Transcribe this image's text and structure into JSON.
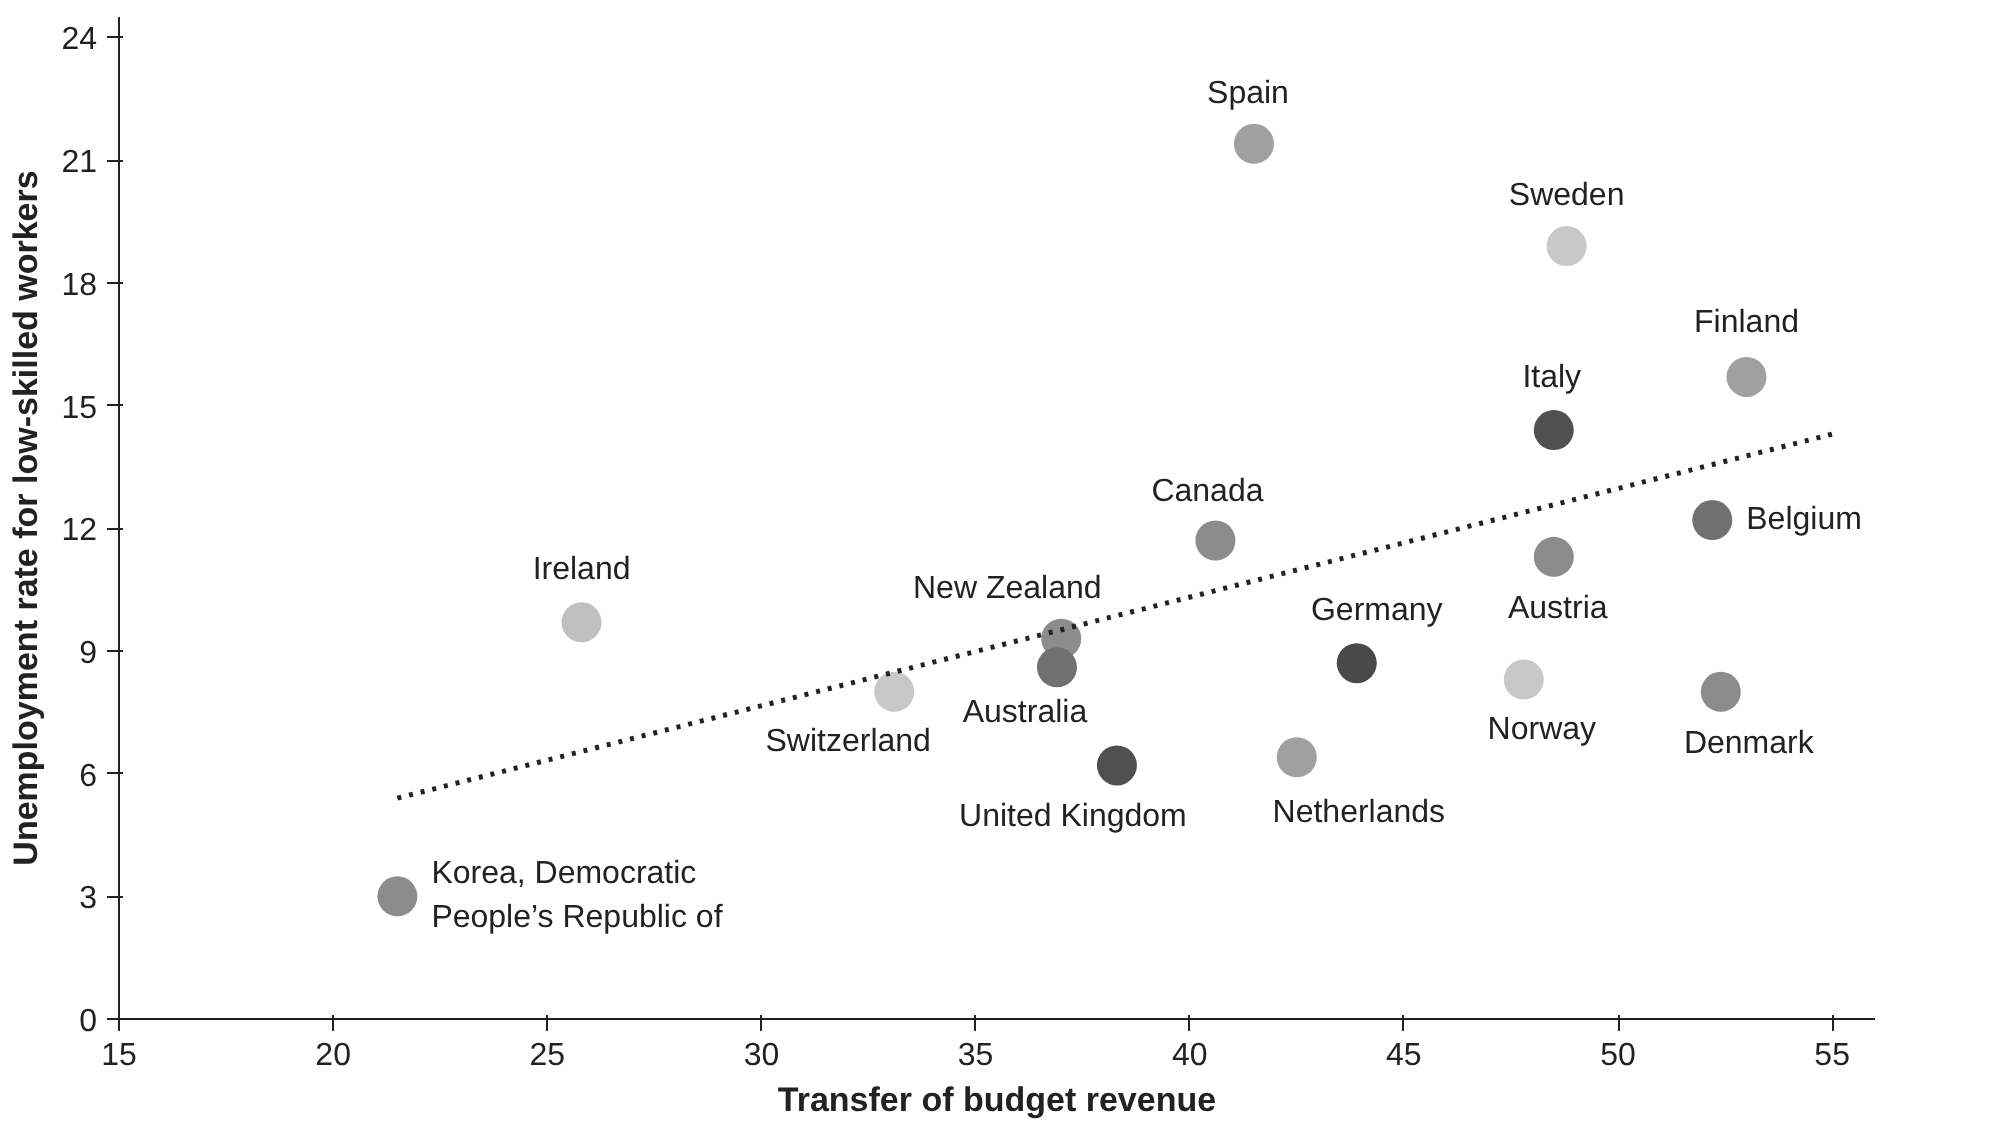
{
  "chart_data": {
    "type": "scatter",
    "xlabel": "Transfer of budget revenue",
    "ylabel": "Unemployment rate for low-skilled workers",
    "xlim": [
      15,
      56
    ],
    "ylim": [
      0,
      24.5
    ],
    "xticks": [
      15,
      20,
      25,
      30,
      35,
      40,
      45,
      50,
      55
    ],
    "yticks": [
      0,
      3,
      6,
      9,
      12,
      15,
      18,
      21,
      24
    ],
    "grid": false,
    "series": [
      {
        "marker": "circle",
        "x": [
          21.5,
          25.8,
          33.1,
          37.0,
          36.9,
          38.3,
          40.6,
          41.5,
          42.5,
          43.9,
          47.8,
          48.8,
          48.5,
          48.5,
          52.2,
          52.4,
          53.0
        ],
        "values": [
          3.0,
          9.7,
          8.0,
          9.3,
          8.6,
          6.2,
          11.7,
          21.4,
          6.4,
          8.7,
          8.3,
          18.9,
          14.4,
          11.3,
          12.2,
          8.0,
          15.7
        ],
        "colors": [
          "#8c8c8c",
          "#c0c0c0",
          "#c8c8c8",
          "#8c8c8c",
          "#707070",
          "#505050",
          "#8c8c8c",
          "#a0a0a0",
          "#a0a0a0",
          "#4a4a4a",
          "#c8c8c8",
          "#c8c8c8",
          "#505050",
          "#8c8c8c",
          "#707070",
          "#8c8c8c",
          "#a0a0a0"
        ]
      },
      {
        "type": "line",
        "x": [
          21.5,
          55
        ],
        "values": [
          5.4,
          14.3
        ],
        "color": "#222222",
        "line_style": "dotted"
      }
    ],
    "annotations": [
      {
        "text": "Korea, Democratic\nPeople’s Republic of",
        "x": 21.5,
        "y": 3.0
      },
      {
        "text": "Ireland",
        "x": 25.8,
        "y": 9.7
      },
      {
        "text": "Switzerland",
        "x": 33.1,
        "y": 8.0
      },
      {
        "text": "New Zealand",
        "x": 37.0,
        "y": 9.3
      },
      {
        "text": "Australia",
        "x": 36.9,
        "y": 8.6
      },
      {
        "text": "United Kingdom",
        "x": 38.3,
        "y": 6.2
      },
      {
        "text": "Canada",
        "x": 40.6,
        "y": 11.7
      },
      {
        "text": "Spain",
        "x": 41.5,
        "y": 21.4
      },
      {
        "text": "Netherlands",
        "x": 42.5,
        "y": 6.4
      },
      {
        "text": "Germany",
        "x": 43.9,
        "y": 8.7
      },
      {
        "text": "Norway",
        "x": 47.8,
        "y": 8.3
      },
      {
        "text": "Sweden",
        "x": 48.8,
        "y": 18.9
      },
      {
        "text": "Italy",
        "x": 48.5,
        "y": 14.4
      },
      {
        "text": "Austria",
        "x": 48.5,
        "y": 11.3
      },
      {
        "text": "Belgium",
        "x": 52.2,
        "y": 12.2
      },
      {
        "text": "Denmark",
        "x": 52.4,
        "y": 8.0
      },
      {
        "text": "Finland",
        "x": 53.0,
        "y": 15.7
      }
    ]
  }
}
